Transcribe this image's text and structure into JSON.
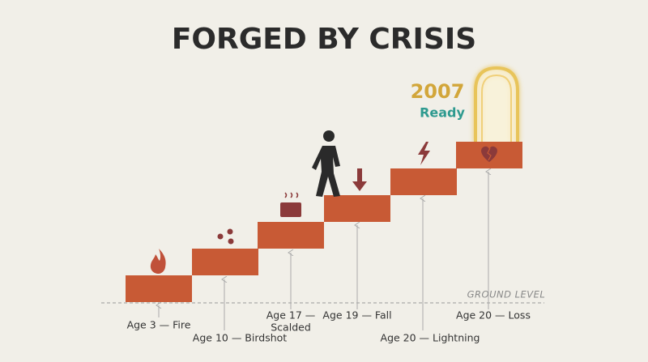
{
  "title": "FORGED BY CRISIS",
  "year": "2007",
  "status": "Ready",
  "ground_label": "GROUND LEVEL",
  "milestones": [
    {
      "lines": [
        "Age 3 — Fire"
      ]
    },
    {
      "lines": [
        "Age 10 — Birdshot"
      ]
    },
    {
      "lines": [
        "Age 17 —",
        "Scalded"
      ]
    },
    {
      "lines": [
        "Age 19 — Fall"
      ]
    },
    {
      "lines": [
        "Age 20 — Lightning"
      ]
    },
    {
      "lines": [
        "Age 20 — Loss"
      ]
    }
  ]
}
